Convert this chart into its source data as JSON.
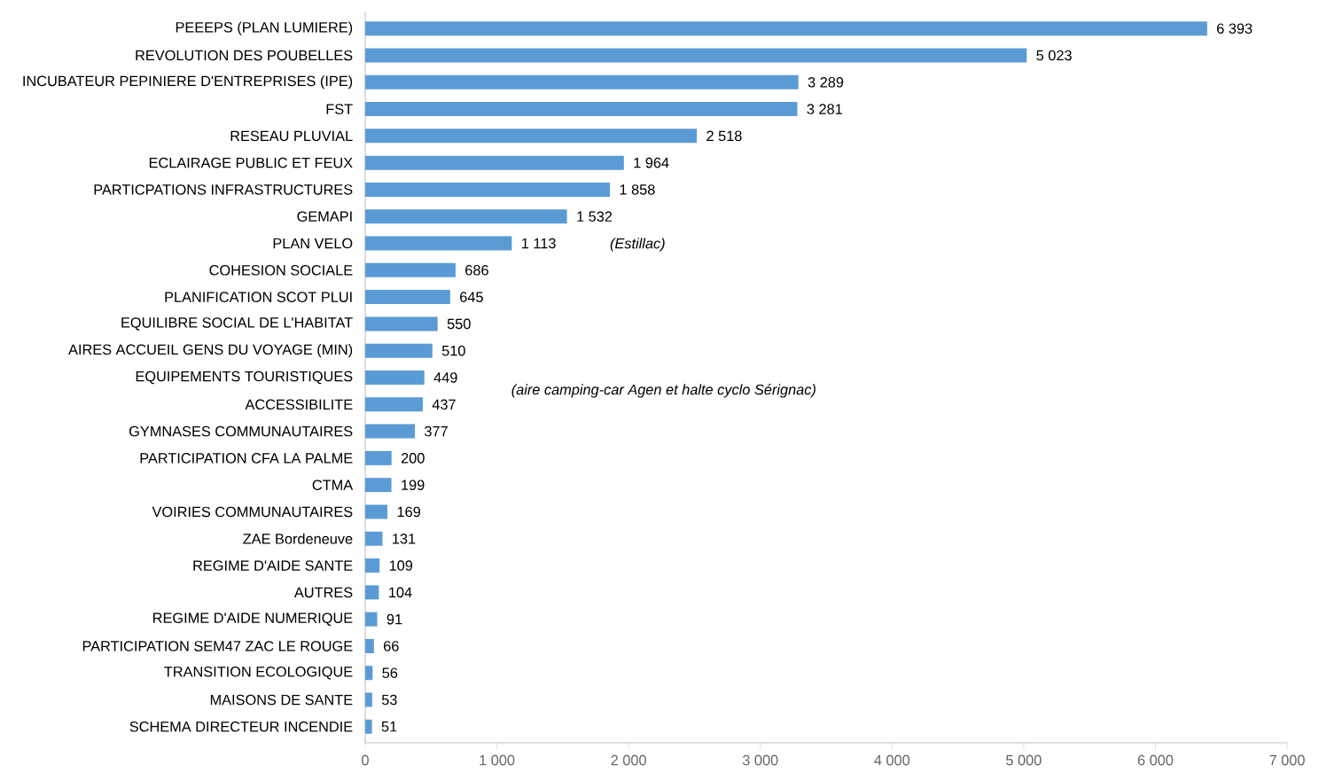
{
  "chart_data": {
    "type": "bar",
    "orientation": "horizontal",
    "categories": [
      "PEEEPS (PLAN LUMIERE)",
      "REVOLUTION DES POUBELLES",
      "INCUBATEUR PEPINIERE D'ENTREPRISES (IPE)",
      "FST",
      "RESEAU PLUVIAL",
      "ECLAIRAGE PUBLIC ET FEUX",
      "PARTICPATIONS INFRASTRUCTURES",
      "GEMAPI",
      "PLAN VELO",
      "COHESION SOCIALE",
      "PLANIFICATION SCOT PLUI",
      "EQUILIBRE SOCIAL DE L'HABITAT",
      "AIRES ACCUEIL GENS DU VOYAGE (MIN)",
      "EQUIPEMENTS TOURISTIQUES",
      "ACCESSIBILITE",
      "GYMNASES COMMUNAUTAIRES",
      "PARTICIPATION CFA LA PALME",
      "CTMA",
      "VOIRIES COMMUNAUTAIRES",
      "ZAE Bordeneuve",
      "REGIME D'AIDE SANTE",
      "AUTRES",
      "REGIME D'AIDE NUMERIQUE",
      "PARTICIPATION SEM47 ZAC LE ROUGE",
      "TRANSITION ECOLOGIQUE",
      "MAISONS DE SANTE",
      "SCHEMA DIRECTEUR INCENDIE"
    ],
    "values": [
      6393,
      5023,
      3289,
      3281,
      2518,
      1964,
      1858,
      1532,
      1113,
      686,
      645,
      550,
      510,
      449,
      437,
      377,
      200,
      199,
      169,
      131,
      109,
      104,
      91,
      66,
      56,
      53,
      51
    ],
    "value_labels": [
      "6 393",
      "5 023",
      "3 289",
      "3 281",
      "2 518",
      "1 964",
      "1 858",
      "1 532",
      "1 113",
      "686",
      "645",
      "550",
      "510",
      "449",
      "437",
      "377",
      "200",
      "199",
      "169",
      "131",
      "109",
      "104",
      "91",
      "66",
      "56",
      "53",
      "51"
    ],
    "color": "#5b9bd5",
    "xlim": [
      0,
      7000
    ],
    "xticks": [
      0,
      {
        "value": 1000,
        "label": "1 000"
      },
      {
        "value": 2000,
        "label": "2 000"
      },
      {
        "value": 3000,
        "label": "3 000"
      },
      {
        "value": 4000,
        "label": "4 000"
      },
      {
        "value": 5000,
        "label": "5 000"
      },
      {
        "value": 6000,
        "label": "6 000"
      },
      {
        "value": 7000,
        "label": "7 000"
      }
    ],
    "annotations": [
      "*(Estillac)*",
      "*(aire camping-car Agen et halte cyclo Sérignac)*"
    ],
    "grid": false
  }
}
